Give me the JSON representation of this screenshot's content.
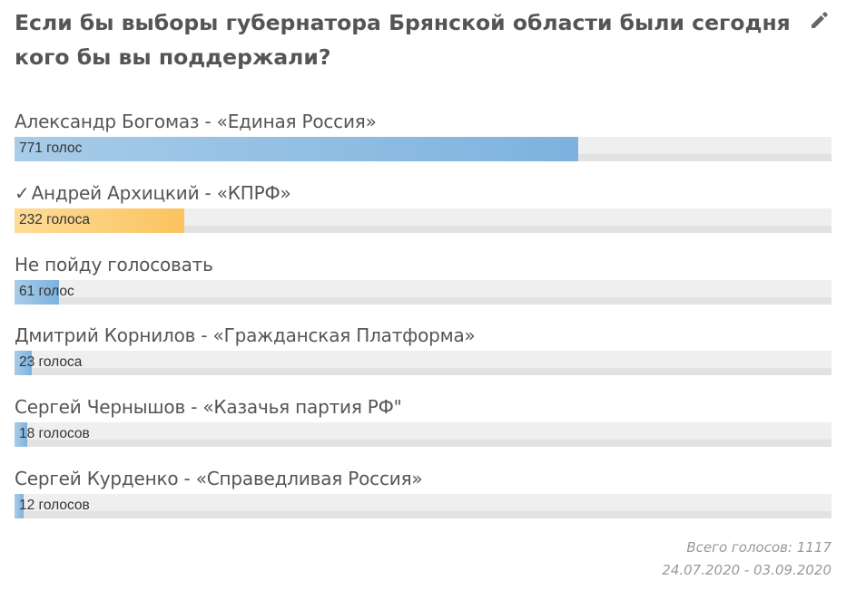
{
  "poll": {
    "title": "Если бы выборы губернатора Брянской области были сегодня кого бы вы поддержали?",
    "edit_icon": "pencil-icon",
    "answers": [
      {
        "label": "Александр Богомаз - «Единая Россия»",
        "count_text": "771 голос",
        "votes": 771,
        "selected": false,
        "color": "#7db2de"
      },
      {
        "label": "Андрей Архицкий - «КПРФ»",
        "count_text": "232 голоса",
        "votes": 232,
        "selected": true,
        "check": "✓",
        "color": "#fcc35e"
      },
      {
        "label": "Не пойду голосовать",
        "count_text": "61 голос",
        "votes": 61,
        "selected": false,
        "color": "#7db2de"
      },
      {
        "label": "Дмитрий Корнилов - «Гражданская Платформа»",
        "count_text": "23 голоса",
        "votes": 23,
        "selected": false,
        "color": "#7db2de"
      },
      {
        "label": "Сергей Чернышов - «Казачья партия РФ\"",
        "count_text": "18 голосов",
        "votes": 18,
        "selected": false,
        "color": "#7db2de"
      },
      {
        "label": "Сергей Курденко - «Справедливая Россия»",
        "count_text": "12 голосов",
        "votes": 12,
        "selected": false,
        "color": "#7db2de"
      }
    ],
    "max_votes": 771,
    "max_fill_fraction": 0.69,
    "total_text": "Всего голосов: 1117",
    "total_votes": 1117,
    "dates": "24.07.2020 - 03.09.2020"
  }
}
